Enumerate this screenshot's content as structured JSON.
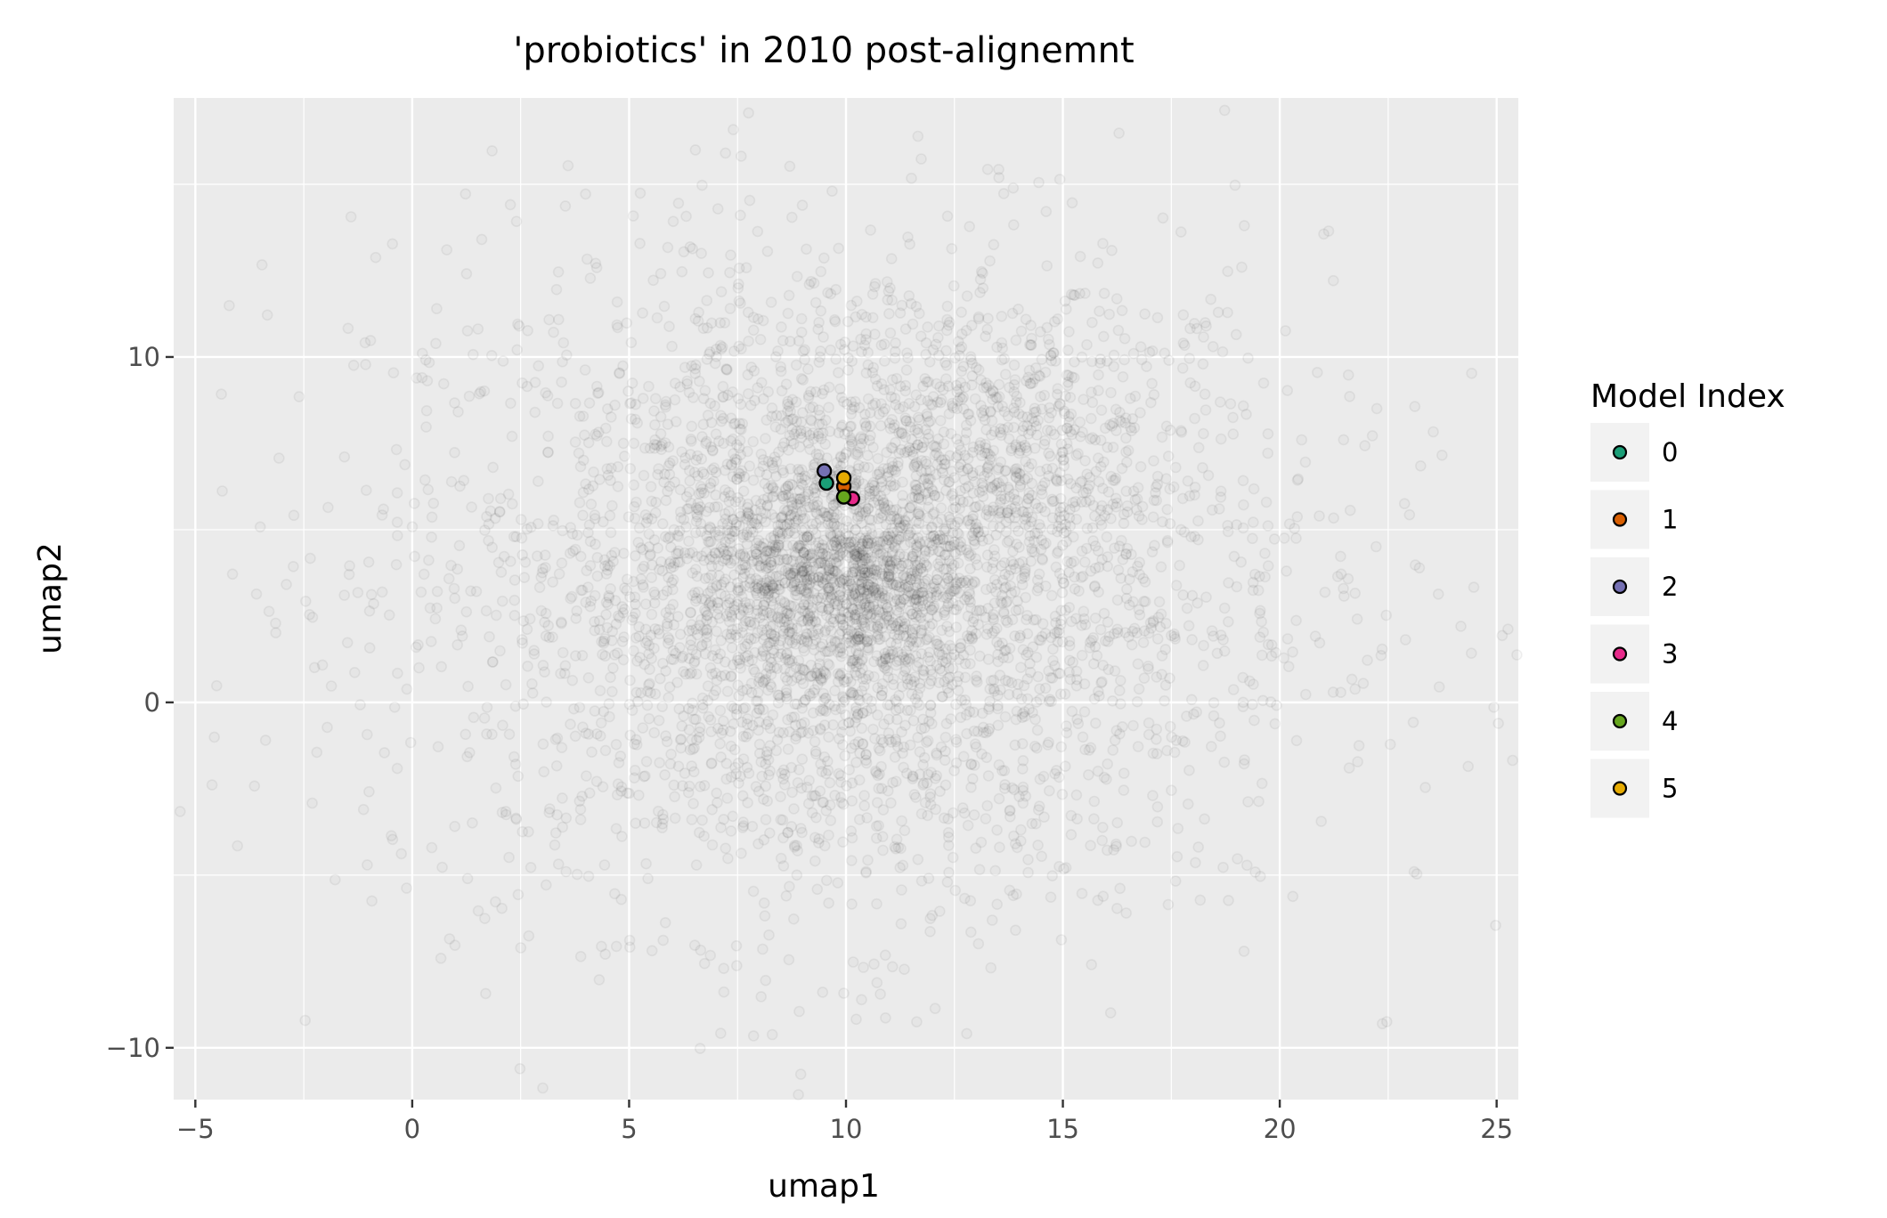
{
  "chart_data": {
    "type": "scatter",
    "title": "'probiotics' in 2010 post-alignemnt",
    "xlabel": "umap1",
    "ylabel": "umap2",
    "xlim": [
      -5.5,
      25.5
    ],
    "ylim": [
      -11.5,
      17.5
    ],
    "x_ticks": [
      -5,
      0,
      5,
      10,
      15,
      20,
      25
    ],
    "x_tick_labels": [
      "−5",
      "0",
      "5",
      "10",
      "15",
      "20",
      "25"
    ],
    "y_ticks": [
      -10,
      0,
      10
    ],
    "y_tick_labels": [
      "−10",
      "0",
      "10"
    ],
    "grid": true,
    "background_color": "#ebebeb",
    "background_points": {
      "description_visible": false,
      "color": "#000000",
      "alpha": 0.04,
      "clusters": [
        {
          "center": [
            10.0,
            3.5
          ],
          "spread": [
            5.5,
            5.0
          ],
          "count": 2600
        },
        {
          "center": [
            9.8,
            3.6
          ],
          "spread": [
            1.6,
            1.6
          ],
          "count": 900
        },
        {
          "center": [
            14.0,
            7.8
          ],
          "spread": [
            1.8,
            1.8
          ],
          "count": 350
        },
        {
          "center": [
            10.0,
            3.0
          ],
          "spread": [
            3.2,
            3.6
          ],
          "count": 1200
        }
      ]
    },
    "series": [
      {
        "name": "0",
        "color": "#1b9e77",
        "points": [
          [
            9.55,
            6.35
          ]
        ]
      },
      {
        "name": "1",
        "color": "#d95f02",
        "points": [
          [
            9.95,
            6.25
          ]
        ]
      },
      {
        "name": "2",
        "color": "#7570b3",
        "points": [
          [
            9.5,
            6.7
          ]
        ]
      },
      {
        "name": "3",
        "color": "#e7298a",
        "points": [
          [
            10.15,
            5.9
          ]
        ]
      },
      {
        "name": "4",
        "color": "#66a61e",
        "points": [
          [
            9.95,
            5.95
          ]
        ]
      },
      {
        "name": "5",
        "color": "#e6ab02",
        "points": [
          [
            9.95,
            6.5
          ]
        ]
      }
    ],
    "legend": {
      "title": "Model Index",
      "placement": "right",
      "entries": [
        "0",
        "1",
        "2",
        "3",
        "4",
        "5"
      ]
    }
  }
}
